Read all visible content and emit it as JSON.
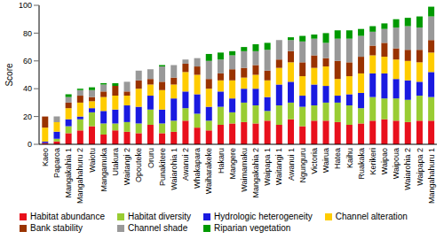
{
  "chart_data": {
    "type": "bar",
    "stacked": true,
    "grid": false,
    "legend": "bottom",
    "y_label": "Score",
    "ylim": [
      0,
      100
    ],
    "yticks": [
      0,
      20,
      40,
      60,
      80,
      100
    ],
    "categories": [
      "Kaeo",
      "Paparoa",
      "Mangakahia 1",
      "Mangahahuru 2",
      "Waiotu",
      "Mangamuka",
      "Utakura",
      "Waitangi 2",
      "Opouteke",
      "Oruru",
      "Punakitere",
      "Waiarohia 1",
      "Awanui 2",
      "Whakapara",
      "Waiharakeke",
      "Hakaru",
      "Mangere",
      "Waimamaku",
      "Mangakahia 2",
      "Waipapa 1",
      "Waitangi 1",
      "Awanui 1",
      "Ngunguru",
      "Victoria",
      "Wairua",
      "Hatea",
      "Kaihu",
      "Ruakaka",
      "Kerikeri",
      "Waipao",
      "Waipoua",
      "Waiarohia 2",
      "Waipapa 2",
      "Mangahahuru 1"
    ],
    "series": [
      {
        "name": "Habitat abundance",
        "color": "#e8101c",
        "values": [
          1,
          2,
          8,
          10,
          13,
          7,
          10,
          9,
          8,
          14,
          8,
          9,
          17,
          12,
          10,
          14,
          15,
          16,
          15,
          17,
          14,
          18,
          13,
          17,
          17,
          16,
          14,
          15,
          17,
          18,
          17,
          16,
          17,
          17
        ]
      },
      {
        "name": "Habitat diversity",
        "color": "#99cc33",
        "values": [
          0,
          2,
          5,
          8,
          10,
          8,
          5,
          7,
          7,
          11,
          7,
          8,
          9,
          10,
          7,
          13,
          8,
          14,
          13,
          7,
          14,
          12,
          14,
          11,
          13,
          14,
          14,
          11,
          17,
          15,
          16,
          16,
          18,
          17
        ]
      },
      {
        "name": "Hydrologic heterogeneity",
        "color": "#1a1ae0",
        "values": [
          1,
          5,
          5,
          2,
          3,
          9,
          10,
          12,
          12,
          10,
          10,
          16,
          12,
          14,
          10,
          11,
          10,
          10,
          12,
          10,
          15,
          15,
          8,
          15,
          12,
          5,
          8,
          11,
          17,
          18,
          14,
          14,
          10,
          18
        ]
      },
      {
        "name": "Channel alteration",
        "color": "#ffcc00",
        "values": [
          10,
          7,
          8,
          10,
          5,
          10,
          10,
          7,
          13,
          8,
          14,
          10,
          14,
          14,
          13,
          8,
          13,
          8,
          10,
          12,
          12,
          14,
          14,
          12,
          14,
          12,
          13,
          14,
          13,
          12,
          14,
          14,
          14,
          14
        ]
      },
      {
        "name": "Bank stability",
        "color": "#993300",
        "values": [
          8,
          0,
          4,
          5,
          3,
          4,
          7,
          3,
          6,
          4,
          6,
          5,
          6,
          6,
          7,
          5,
          8,
          7,
          7,
          7,
          6,
          8,
          10,
          9,
          6,
          13,
          10,
          12,
          7,
          10,
          8,
          8,
          9,
          9
        ]
      },
      {
        "name": "Channel shade",
        "color": "#999999",
        "values": [
          0,
          4,
          4,
          4,
          5,
          5,
          0,
          7,
          7,
          7,
          11,
          9,
          3,
          6,
          13,
          10,
          10,
          12,
          10,
          15,
          14,
          8,
          15,
          12,
          11,
          16,
          17,
          15,
          10,
          10,
          15,
          17,
          16,
          17
        ]
      },
      {
        "name": "Riparian vegetation",
        "color": "#009900",
        "values": [
          0,
          0,
          2,
          1,
          2,
          1,
          2,
          0,
          0,
          0,
          1,
          0,
          0,
          0,
          5,
          5,
          3,
          3,
          5,
          5,
          0,
          2,
          4,
          3,
          7,
          6,
          6,
          5,
          4,
          4,
          6,
          6,
          8,
          7
        ]
      }
    ]
  }
}
